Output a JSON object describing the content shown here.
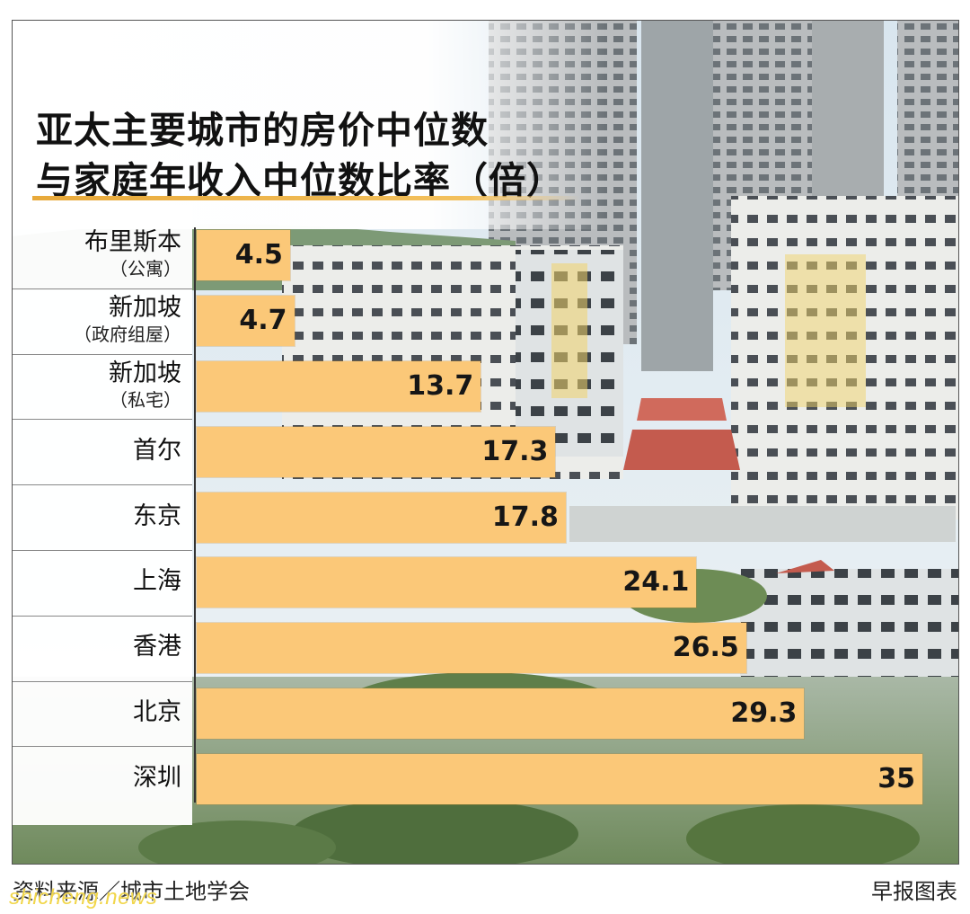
{
  "chart_data": {
    "type": "bar",
    "orientation": "horizontal",
    "title_lines": [
      "亚太主要城市的房价中位数",
      "与家庭年收入中位数比率（倍）"
    ],
    "categories": [
      {
        "main": "布里斯本",
        "sub": "（公寓）"
      },
      {
        "main": "新加坡",
        "sub": "（政府组屋）"
      },
      {
        "main": "新加坡",
        "sub": "（私宅）"
      },
      {
        "main": "首尔",
        "sub": ""
      },
      {
        "main": "东京",
        "sub": ""
      },
      {
        "main": "上海",
        "sub": ""
      },
      {
        "main": "香港",
        "sub": ""
      },
      {
        "main": "北京",
        "sub": ""
      },
      {
        "main": "深圳",
        "sub": ""
      }
    ],
    "values": [
      4.5,
      4.7,
      13.7,
      17.3,
      17.8,
      24.1,
      26.5,
      29.3,
      35
    ],
    "value_labels": [
      "4.5",
      "4.7",
      "13.7",
      "17.3",
      "17.8",
      "24.1",
      "26.5",
      "29.3",
      "35"
    ],
    "xlim": [
      0,
      35
    ],
    "grid": false,
    "bar_color": "#fbc878"
  },
  "footer": {
    "source": "资料来源／城市土地学会",
    "credit": "早报图表",
    "watermark": "shicheng.news"
  }
}
